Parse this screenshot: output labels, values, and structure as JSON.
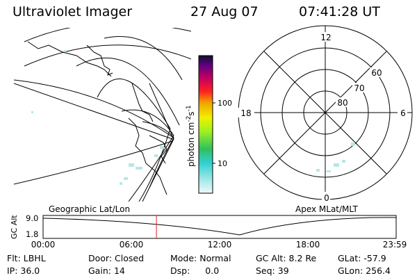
{
  "header": {
    "title": "Ultraviolet Imager",
    "date": "27 Aug 07",
    "time": "07:41:28 UT"
  },
  "colorbar": {
    "label": "photon cm",
    "exp1": "-2",
    "mid": "s",
    "exp2": "-1",
    "ticks": [
      "100",
      "10"
    ]
  },
  "polar": {
    "clock": [
      "12",
      "18",
      "6",
      "0"
    ],
    "lat_labels": [
      "60",
      "70",
      "80"
    ]
  },
  "labels": {
    "left_plot": "Geographic Lat/Lon",
    "right_plot": "Apex MLat/MLT",
    "alt_axis": "GC Alt"
  },
  "altitude_plot": {
    "y_ticks": [
      "9.0",
      "1.8"
    ],
    "x_ticks": [
      "00:00",
      "06:00",
      "12:00",
      "18:00",
      "23:59"
    ],
    "current_time_fraction": 0.321
  },
  "info": [
    {
      "label": "Flt:",
      "value": "LBHL"
    },
    {
      "label": "Door:",
      "value": "Closed"
    },
    {
      "label": "Mode:",
      "value": "Normal"
    },
    {
      "label": "GC Alt:",
      "value": "8.2 Re"
    },
    {
      "label": "GLat:",
      "value": "-57.9"
    },
    {
      "label": "IP:",
      "value": "36.0"
    },
    {
      "label": "Gain:",
      "value": "14"
    },
    {
      "label": "Dsp:",
      "value": "0.0"
    },
    {
      "label": "Seq:",
      "value": "39"
    },
    {
      "label": "GLon:",
      "value": "256.4"
    }
  ],
  "colors": {
    "current_time_marker": "#e02020",
    "aurora_speckle": "#b8e6e6"
  }
}
